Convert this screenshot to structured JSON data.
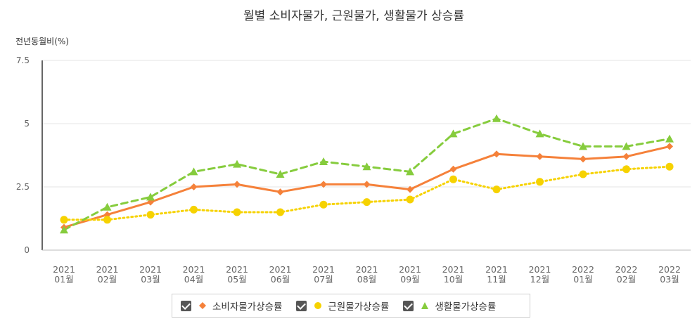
{
  "chart_data": {
    "type": "line",
    "title": "월별 소비자물가, 근원물가, 생활물가 상승률",
    "ylabel": "전년동월비(%)",
    "xlabel": "",
    "ylim": [
      0,
      7.5
    ],
    "yticks": [
      0,
      2.5,
      5,
      7.5
    ],
    "ytick_labels": [
      "0",
      "2.5",
      "5",
      "7.5"
    ],
    "categories": [
      [
        "2021",
        "01월"
      ],
      [
        "2021",
        "02월"
      ],
      [
        "2021",
        "03월"
      ],
      [
        "2021",
        "04월"
      ],
      [
        "2021",
        "05월"
      ],
      [
        "2021",
        "06월"
      ],
      [
        "2021",
        "07월"
      ],
      [
        "2021",
        "08월"
      ],
      [
        "2021",
        "09월"
      ],
      [
        "2021",
        "10월"
      ],
      [
        "2021",
        "11월"
      ],
      [
        "2021",
        "12월"
      ],
      [
        "2022",
        "01월"
      ],
      [
        "2022",
        "02월"
      ],
      [
        "2022",
        "03월"
      ]
    ],
    "series": [
      {
        "name": "소비자물가상승률",
        "color": "#f5813a",
        "marker": "diamond",
        "dash": "solid",
        "values": [
          0.9,
          1.4,
          1.9,
          2.5,
          2.6,
          2.3,
          2.6,
          2.6,
          2.4,
          3.2,
          3.8,
          3.7,
          3.6,
          3.7,
          4.1
        ]
      },
      {
        "name": "근원물가상승률",
        "color": "#f6d200",
        "marker": "circle",
        "dash": "dotted",
        "values": [
          1.2,
          1.2,
          1.4,
          1.6,
          1.5,
          1.5,
          1.8,
          1.9,
          2.0,
          2.8,
          2.4,
          2.7,
          3.0,
          3.2,
          3.3
        ]
      },
      {
        "name": "생활물가상승률",
        "color": "#86cc3d",
        "marker": "triangle",
        "dash": "dashed",
        "values": [
          0.8,
          1.7,
          2.1,
          3.1,
          3.4,
          3.0,
          3.5,
          3.3,
          3.1,
          4.6,
          5.2,
          4.6,
          4.1,
          4.1,
          4.4
        ]
      }
    ],
    "legend_position": "bottom-center",
    "grid": true
  }
}
